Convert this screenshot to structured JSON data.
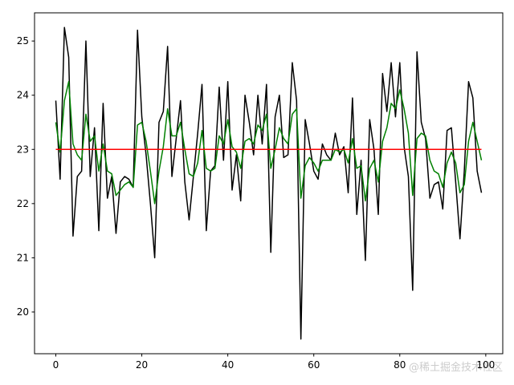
{
  "chart_data": {
    "type": "line",
    "x": [
      0,
      1,
      2,
      3,
      4,
      5,
      6,
      7,
      8,
      9,
      10,
      11,
      12,
      13,
      14,
      15,
      16,
      17,
      18,
      19,
      20,
      21,
      22,
      23,
      24,
      25,
      26,
      27,
      28,
      29,
      30,
      31,
      32,
      33,
      34,
      35,
      36,
      37,
      38,
      39,
      40,
      41,
      42,
      43,
      44,
      45,
      46,
      47,
      48,
      49,
      50,
      51,
      52,
      53,
      54,
      55,
      56,
      57,
      58,
      59,
      60,
      61,
      62,
      63,
      64,
      65,
      66,
      67,
      68,
      69,
      70,
      71,
      72,
      73,
      74,
      75,
      76,
      77,
      78,
      79,
      80,
      81,
      82,
      83,
      84,
      85,
      86,
      87,
      88,
      89,
      90,
      91,
      92,
      93,
      94,
      95,
      96,
      97,
      98,
      99
    ],
    "series": [
      {
        "color": "#000000",
        "values": [
          23.9,
          22.45,
          25.25,
          24.7,
          21.4,
          22.5,
          22.6,
          25.0,
          22.5,
          23.4,
          21.5,
          23.85,
          22.1,
          22.5,
          21.45,
          22.4,
          22.5,
          22.45,
          22.3,
          25.2,
          23.6,
          22.9,
          22.0,
          21.0,
          23.5,
          23.7,
          24.9,
          22.5,
          23.2,
          23.9,
          22.4,
          21.7,
          22.5,
          23.3,
          24.2,
          21.5,
          22.6,
          22.7,
          24.15,
          22.8,
          24.25,
          22.25,
          22.9,
          22.05,
          24.0,
          23.5,
          22.9,
          24.0,
          23.1,
          24.2,
          21.1,
          23.6,
          24.0,
          22.85,
          22.9,
          24.6,
          23.9,
          19.5,
          23.55,
          23.1,
          22.6,
          22.45,
          23.1,
          22.9,
          22.8,
          23.3,
          22.9,
          23.05,
          22.2,
          23.95,
          21.8,
          22.8,
          20.95,
          23.55,
          23.0,
          21.8,
          24.4,
          23.7,
          24.6,
          23.6,
          24.6,
          23.05,
          22.5,
          20.4,
          24.8,
          23.5,
          23.2,
          22.1,
          22.35,
          22.4,
          21.9,
          23.35,
          23.4,
          22.4,
          21.35,
          22.6,
          24.25,
          23.95,
          22.6,
          22.2
        ]
      },
      {
        "color": "#008000",
        "values": [
          23.5,
          22.95,
          23.9,
          24.25,
          23.1,
          22.9,
          22.8,
          23.65,
          23.15,
          23.25,
          22.6,
          23.1,
          22.6,
          22.55,
          22.15,
          22.25,
          22.35,
          22.4,
          22.3,
          23.45,
          23.5,
          23.15,
          22.6,
          22.0,
          22.6,
          23.05,
          23.75,
          23.25,
          23.25,
          23.5,
          23.0,
          22.55,
          22.5,
          22.75,
          23.35,
          22.65,
          22.6,
          22.65,
          23.25,
          23.1,
          23.55,
          23.05,
          22.95,
          22.65,
          23.15,
          23.2,
          23.1,
          23.45,
          23.35,
          23.65,
          22.65,
          23.0,
          23.4,
          23.2,
          23.1,
          23.65,
          23.75,
          22.1,
          22.7,
          22.85,
          22.75,
          22.6,
          22.8,
          22.8,
          22.8,
          23.0,
          22.95,
          23.0,
          22.75,
          23.2,
          22.65,
          22.7,
          22.05,
          22.65,
          22.8,
          22.4,
          23.15,
          23.4,
          23.85,
          23.75,
          24.1,
          23.75,
          23.3,
          22.15,
          23.2,
          23.3,
          23.25,
          22.8,
          22.6,
          22.55,
          22.3,
          22.75,
          22.95,
          22.75,
          22.2,
          22.35,
          23.15,
          23.5,
          23.15,
          22.8
        ]
      },
      {
        "color": "#ff0000",
        "values": [
          23,
          23,
          23,
          23,
          23,
          23,
          23,
          23,
          23,
          23,
          23,
          23,
          23,
          23,
          23,
          23,
          23,
          23,
          23,
          23,
          23,
          23,
          23,
          23,
          23,
          23,
          23,
          23,
          23,
          23,
          23,
          23,
          23,
          23,
          23,
          23,
          23,
          23,
          23,
          23,
          23,
          23,
          23,
          23,
          23,
          23,
          23,
          23,
          23,
          23,
          23,
          23,
          23,
          23,
          23,
          23,
          23,
          23,
          23,
          23,
          23,
          23,
          23,
          23,
          23,
          23,
          23,
          23,
          23,
          23,
          23,
          23,
          23,
          23,
          23,
          23,
          23,
          23,
          23,
          23,
          23,
          23,
          23,
          23,
          23,
          23,
          23,
          23,
          23,
          23,
          23,
          23,
          23,
          23,
          23,
          23,
          23,
          23,
          23,
          23
        ]
      }
    ],
    "xlim": [
      -4.95,
      103.95
    ],
    "ylim": [
      19.23,
      25.52
    ],
    "xticks": [
      0,
      20,
      40,
      60,
      80,
      100
    ],
    "yticks": [
      20,
      21,
      22,
      23,
      24,
      25
    ],
    "annotation": "@稀土掘金技术社区"
  }
}
